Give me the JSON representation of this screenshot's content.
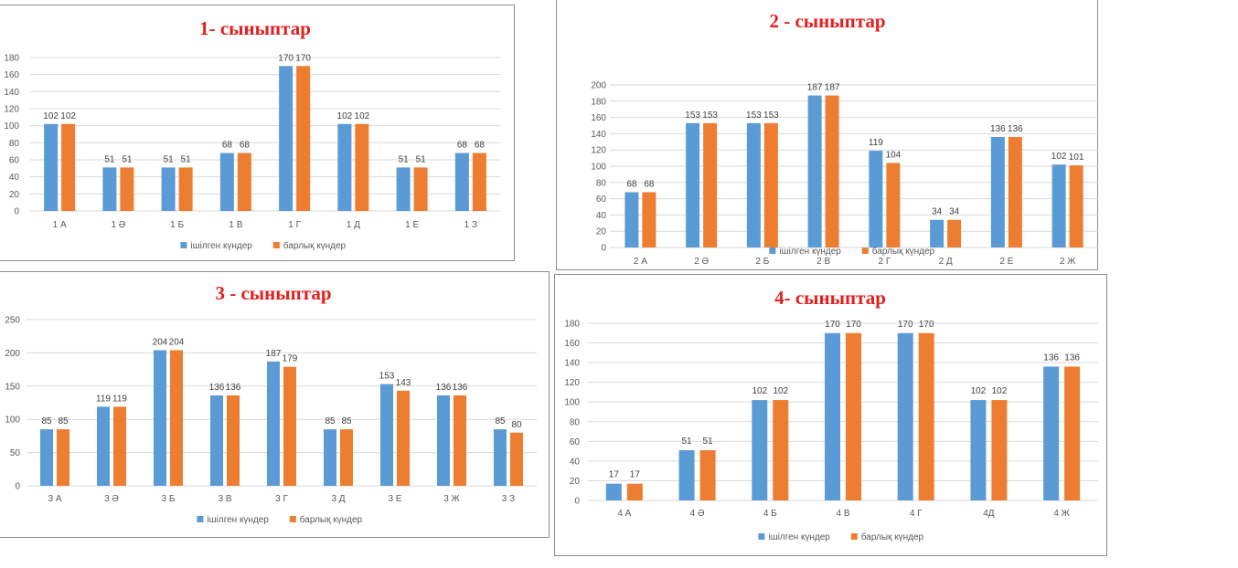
{
  "colors": {
    "series1": "#5b9bd5",
    "series2": "#ed7d31",
    "grid": "#d9d9d9",
    "title": "#e31e1e"
  },
  "chart_data": [
    {
      "type": "bar",
      "title": "1- сыныптар",
      "categories": [
        "1 А",
        "1 Ә",
        "1 Б",
        "1 В",
        "1 Г",
        "1 Д",
        "1 Е",
        "1 З"
      ],
      "series": [
        {
          "name": "ішілген күндер",
          "values": [
            102,
            51,
            51,
            68,
            170,
            102,
            51,
            68
          ]
        },
        {
          "name": "барлық күндер",
          "values": [
            102,
            51,
            51,
            68,
            170,
            102,
            51,
            68
          ]
        }
      ],
      "yticks": [
        0,
        20,
        40,
        60,
        80,
        100,
        120,
        140,
        160,
        180
      ],
      "ylim": [
        0,
        180
      ],
      "grid": true,
      "legend": "bottom"
    },
    {
      "type": "bar",
      "title": "2 - сыныптар",
      "categories": [
        "2 А",
        "2 Ә",
        "2 Б",
        "2 В",
        "2 Г",
        "2 Д",
        "2 Е",
        "2 Ж"
      ],
      "series": [
        {
          "name": "ішілген күндер",
          "values": [
            68,
            153,
            153,
            187,
            119,
            34,
            136,
            102
          ]
        },
        {
          "name": "барлық күндер",
          "values": [
            68,
            153,
            153,
            187,
            104,
            34,
            136,
            101
          ]
        }
      ],
      "yticks": [
        0,
        20,
        40,
        60,
        80,
        100,
        120,
        140,
        160,
        180,
        200
      ],
      "ylim": [
        0,
        200
      ],
      "grid": true,
      "legend": "bottom"
    },
    {
      "type": "bar",
      "title": "3 - сыныптар",
      "categories": [
        "3 А",
        "3 Ә",
        "3 Б",
        "3 В",
        "3 Г",
        "3 Д",
        "3 Е",
        "3 Ж",
        "3 З"
      ],
      "series": [
        {
          "name": "ішілген күндер",
          "values": [
            85,
            119,
            204,
            136,
            187,
            85,
            153,
            136,
            85
          ]
        },
        {
          "name": "барлық күндер",
          "values": [
            85,
            119,
            204,
            136,
            179,
            85,
            143,
            136,
            80
          ]
        }
      ],
      "yticks": [
        0,
        50,
        100,
        150,
        200,
        250
      ],
      "ylim": [
        0,
        250
      ],
      "grid": true,
      "legend": "bottom"
    },
    {
      "type": "bar",
      "title": "4- сыныптар",
      "categories": [
        "4 А",
        "4 Ә",
        "4 Б",
        "4 В",
        "4 Г",
        "4Д",
        "4 Ж"
      ],
      "series": [
        {
          "name": "ішілген күндер",
          "values": [
            17,
            51,
            102,
            170,
            170,
            102,
            136
          ]
        },
        {
          "name": "барлық күндер",
          "values": [
            17,
            51,
            102,
            170,
            170,
            102,
            136
          ]
        }
      ],
      "yticks": [
        0,
        20,
        40,
        60,
        80,
        100,
        120,
        140,
        160,
        180
      ],
      "ylim": [
        0,
        180
      ],
      "grid": true,
      "legend": "bottom"
    }
  ]
}
